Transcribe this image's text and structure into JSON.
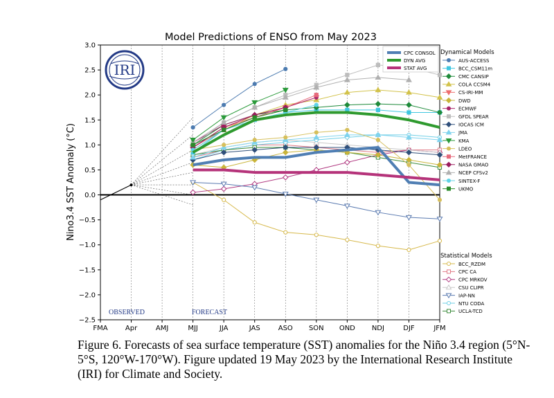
{
  "caption": "Figure 6. Forecasts of sea surface temperature (SST) anomalies for the Niño 3.4 region (5°N-5°S, 120°W-170°W). Figure updated 19 May 2023 by the International Research Institute (IRI) for Climate and Society.",
  "logo_text": "IRI",
  "chart_data": {
    "type": "line",
    "title": "Model Predictions of ENSO from May 2023",
    "xlabel": "",
    "ylabel": "Nino3.4 SST Anomaly (°C)",
    "categories": [
      "FMA",
      "Apr",
      "AMJ",
      "MJJ",
      "JJA",
      "JAS",
      "ASO",
      "SON",
      "OND",
      "NDJ",
      "DJF",
      "JFM"
    ],
    "ylim": [
      -2.5,
      3.0
    ],
    "yticks": [
      -2.5,
      -2.0,
      -1.5,
      -1.0,
      -0.5,
      0.0,
      0.5,
      1.0,
      1.5,
      2.0,
      2.5,
      3.0
    ],
    "ytick_labels": [
      "−2.5",
      "−2.0",
      "−1.5",
      "−1.0",
      "−0.5",
      "0.0",
      "0.5",
      "1.0",
      "1.5",
      "2.0",
      "2.5",
      "3.0"
    ],
    "observed_label": "OBSERVED",
    "forecast_label": "FORECAST",
    "observed": {
      "x": [
        0,
        1
      ],
      "values": [
        -0.1,
        0.2
      ]
    },
    "dynamical_heading": "Dynamical Models",
    "statistical_heading": "Statistical Models",
    "averages": [
      {
        "name": "CPC CONSOL",
        "color": "#4f7eb3",
        "start": 3,
        "values": [
          0.6,
          0.7,
          0.75,
          0.75,
          0.85,
          0.9,
          0.95,
          0.25,
          0.2
        ]
      },
      {
        "name": "DYN AVG",
        "color": "#2f9a2f",
        "start": 3,
        "values": [
          0.85,
          1.2,
          1.5,
          1.6,
          1.65,
          1.65,
          1.6,
          1.5,
          1.35
        ]
      },
      {
        "name": "STAT AVG",
        "color": "#b5337a",
        "start": 3,
        "values": [
          0.5,
          0.5,
          0.45,
          0.45,
          0.45,
          0.45,
          0.4,
          0.35,
          0.3
        ]
      }
    ],
    "dynamical_models": [
      {
        "name": "AUS-ACCESS",
        "color": "#4c7bb0",
        "marker": "o",
        "start": 3,
        "values": [
          1.35,
          1.8,
          2.22,
          2.52
        ]
      },
      {
        "name": "BCC_CSM11m",
        "color": "#3fc6e0",
        "marker": "s",
        "start": 3,
        "values": [
          0.85,
          1.3,
          1.5,
          1.65,
          1.7,
          1.7,
          1.7,
          1.65,
          1.65
        ]
      },
      {
        "name": "CMC CANSIP",
        "color": "#1e8a3a",
        "marker": "D",
        "start": 3,
        "values": [
          1.0,
          1.4,
          1.6,
          1.7,
          1.75,
          1.8,
          1.82,
          1.8,
          1.65
        ]
      },
      {
        "name": "COLA CCSM4",
        "color": "#d2c24a",
        "marker": "^",
        "start": 3,
        "values": [
          0.9,
          1.3,
          1.6,
          1.8,
          1.9,
          2.05,
          2.1,
          2.05,
          1.95
        ]
      },
      {
        "name": "CS-IRI-MM",
        "color": "#ee6e6e",
        "marker": "v",
        "start": 3,
        "values": [
          0.95,
          1.35,
          1.55,
          1.75,
          1.95
        ]
      },
      {
        "name": "DWD",
        "color": "#c9b43a",
        "marker": "D",
        "start": 3,
        "values": [
          0.6,
          0.55,
          0.7,
          0.85,
          0.9,
          0.85,
          0.8,
          0.7,
          0.6
        ]
      },
      {
        "name": "ECMWF",
        "color": "#a8246a",
        "marker": "o",
        "start": 3,
        "values": [
          1.05,
          1.4,
          1.6,
          1.75,
          1.95
        ]
      },
      {
        "name": "GFDL SPEAR",
        "color": "#bdbdbd",
        "marker": "s",
        "start": 3,
        "values": [
          1.05,
          1.45,
          1.75,
          2.0,
          2.2,
          2.4,
          2.6,
          2.55,
          2.4
        ]
      },
      {
        "name": "IOCAS ICM",
        "color": "#2f4f7a",
        "marker": "D",
        "start": 3,
        "values": [
          0.7,
          0.85,
          0.9,
          0.95,
          0.95,
          0.95,
          0.9,
          0.85,
          0.8
        ]
      },
      {
        "name": "JMA",
        "color": "#7fd3ee",
        "marker": "^",
        "start": 3,
        "values": [
          0.75,
          0.95,
          1.05,
          1.1,
          1.15,
          1.2,
          1.2,
          1.15,
          1.1
        ]
      },
      {
        "name": "KMA",
        "color": "#2a9a3a",
        "marker": "v",
        "start": 3,
        "values": [
          1.1,
          1.55,
          1.85,
          2.1
        ]
      },
      {
        "name": "LDEO",
        "color": "#d6bf5c",
        "marker": "o",
        "start": 3,
        "values": [
          0.9,
          1.0,
          1.1,
          1.15,
          1.25,
          1.3,
          1.1,
          0.6,
          -0.1
        ]
      },
      {
        "name": "MetFRANCE",
        "color": "#e6697a",
        "marker": "s",
        "start": 3,
        "values": [
          0.95,
          1.3,
          1.55,
          1.75,
          2.0
        ]
      },
      {
        "name": "NASA GMAO",
        "color": "#9b1d5e",
        "marker": "D",
        "start": 3,
        "values": [
          0.95,
          1.35,
          1.6,
          1.75
        ]
      },
      {
        "name": "NCEP CFSv2",
        "color": "#b0b0b0",
        "marker": "^",
        "start": 3,
        "values": [
          1.0,
          1.45,
          1.75,
          1.95,
          2.15,
          2.3,
          2.35,
          2.3
        ]
      },
      {
        "name": "SINTEX-F",
        "color": "#5fd3e6",
        "marker": "o",
        "start": 3,
        "values": [
          0.9,
          1.3,
          1.5,
          1.65,
          1.8
        ]
      },
      {
        "name": "UKMO",
        "color": "#2a8a2a",
        "marker": "s",
        "start": 3,
        "values": [
          1.0,
          1.3,
          1.55,
          1.7
        ]
      }
    ],
    "statistical_models": [
      {
        "name": "BCC_RZDM",
        "color": "#d6b84a",
        "marker": "o",
        "start": 3,
        "values": [
          0.25,
          -0.1,
          -0.55,
          -0.75,
          -0.8,
          -0.9,
          -1.02,
          -1.1,
          -0.92
        ]
      },
      {
        "name": "CPC CA",
        "color": "#e07a85",
        "marker": "s",
        "start": 3,
        "values": [
          0.75,
          0.9,
          1.0,
          1.0,
          0.95,
          0.9,
          0.85,
          0.9,
          0.9
        ]
      },
      {
        "name": "CPC MRKOV",
        "color": "#b03880",
        "marker": "D",
        "start": 3,
        "values": [
          0.05,
          0.12,
          0.22,
          0.35,
          0.5,
          0.65,
          0.8,
          0.9,
          0.85
        ]
      },
      {
        "name": "CSU CLIPR",
        "color": "#c8c8c8",
        "marker": "^",
        "start": 3,
        "values": [
          0.8,
          0.95,
          1.05,
          1.1,
          1.05,
          1.0,
          0.95,
          0.9,
          0.85
        ]
      },
      {
        "name": "IAP-NN",
        "color": "#5a7ab0",
        "marker": "v",
        "start": 3,
        "values": [
          0.25,
          0.22,
          0.15,
          0.02,
          -0.1,
          -0.22,
          -0.35,
          -0.45,
          -0.48
        ]
      },
      {
        "name": "NTU CODA",
        "color": "#6fcfe6",
        "marker": "o",
        "start": 3,
        "values": [
          0.7,
          0.9,
          1.0,
          1.05,
          1.1,
          1.15,
          1.2,
          1.2,
          1.15
        ]
      },
      {
        "name": "UCLA-TCD",
        "color": "#3a8a3a",
        "marker": "s",
        "start": 3,
        "values": [
          0.8,
          0.9,
          0.95,
          0.95,
          0.9,
          0.85,
          0.75,
          0.65,
          0.55
        ]
      }
    ]
  }
}
